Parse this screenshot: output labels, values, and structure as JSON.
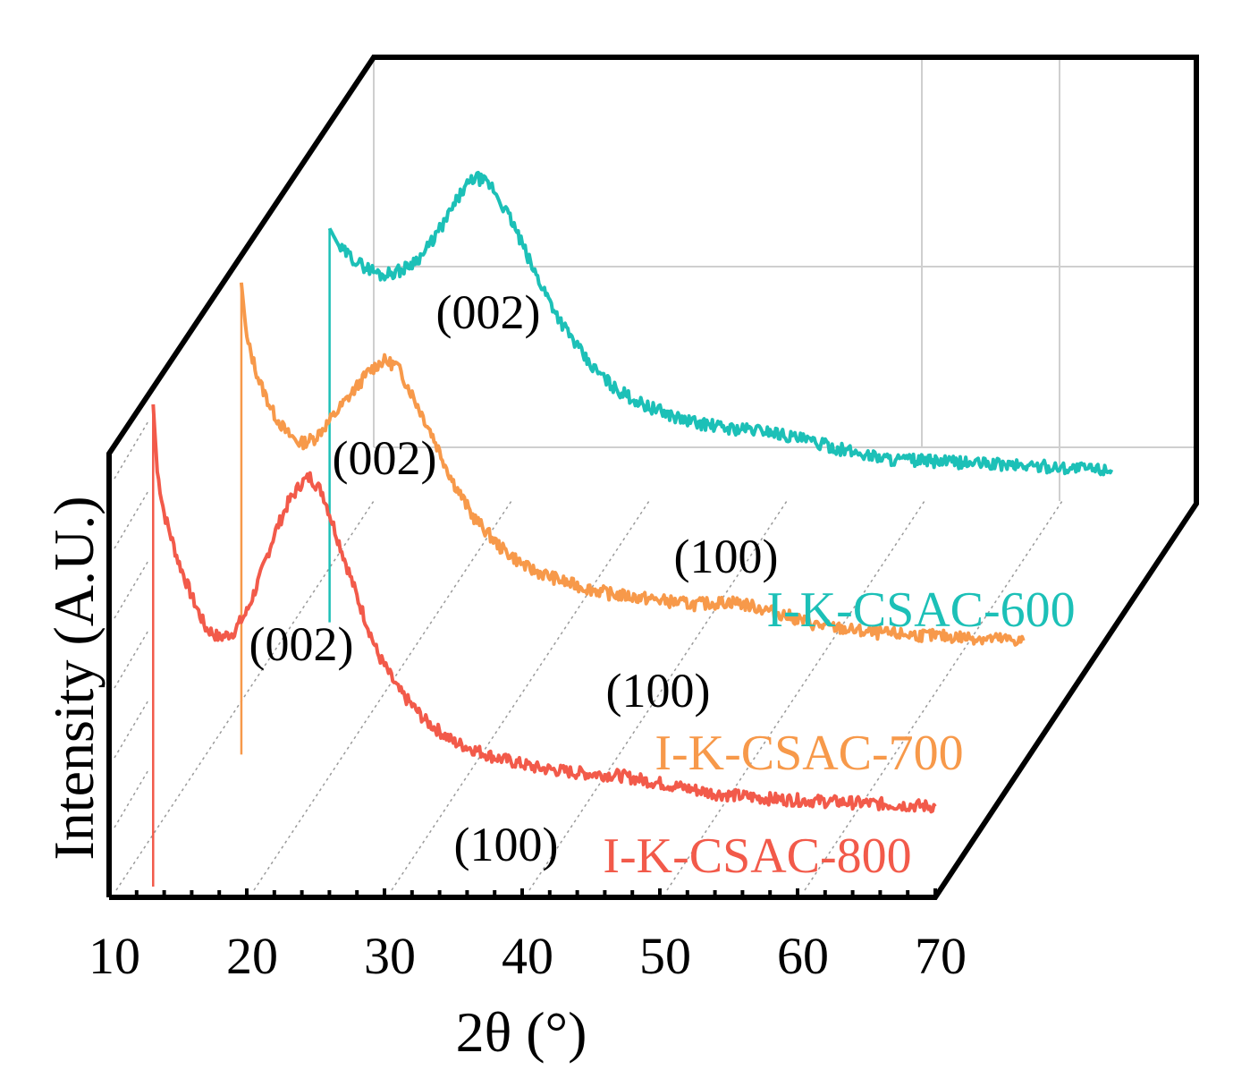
{
  "chart_data": {
    "type": "line",
    "style": "3d-waterfall",
    "title": "",
    "xlabel": "2θ (°)",
    "ylabel": "Intensity (A.U.)",
    "xlim": [
      10,
      70
    ],
    "x_ticks": [
      "10",
      "20",
      "30",
      "40",
      "50",
      "60",
      "70"
    ],
    "series": [
      {
        "name": "I-K-CSAC-800",
        "color": "#f25a4a",
        "label": "I-K-CSAC-800",
        "points": [
          [
            13.2,
            95
          ],
          [
            13.5,
            82
          ],
          [
            14,
            74
          ],
          [
            15,
            65
          ],
          [
            16,
            58
          ],
          [
            17,
            52
          ],
          [
            18,
            50
          ],
          [
            19,
            51
          ],
          [
            20,
            55
          ],
          [
            21,
            62
          ],
          [
            22,
            70
          ],
          [
            23,
            76
          ],
          [
            24,
            80
          ],
          [
            24.6,
            81
          ],
          [
            25.5,
            78
          ],
          [
            26.5,
            70
          ],
          [
            28,
            58
          ],
          [
            29.5,
            47
          ],
          [
            31,
            40
          ],
          [
            33,
            34
          ],
          [
            35,
            30
          ],
          [
            38,
            27
          ],
          [
            41,
            25
          ],
          [
            44,
            24
          ],
          [
            47,
            23.5
          ],
          [
            50,
            22
          ],
          [
            54,
            20
          ],
          [
            58,
            19
          ],
          [
            62,
            18.5
          ],
          [
            66,
            18
          ],
          [
            70,
            17.5
          ]
        ],
        "peaks": [
          {
            "label": "(002)",
            "x": 24.6
          },
          {
            "label": "(100)",
            "x": 45
          }
        ]
      },
      {
        "name": "I-K-CSAC-700",
        "color": "#f7994a",
        "label": "I-K-CSAC-700",
        "points": [
          [
            13.2,
            93
          ],
          [
            13.6,
            82
          ],
          [
            14.5,
            74
          ],
          [
            15.5,
            68
          ],
          [
            16.5,
            64
          ],
          [
            17.5,
            62
          ],
          [
            18.5,
            63
          ],
          [
            19.5,
            66
          ],
          [
            21,
            71
          ],
          [
            22.5,
            76
          ],
          [
            23.5,
            78
          ],
          [
            24.5,
            77
          ],
          [
            25.5,
            72
          ],
          [
            27,
            64
          ],
          [
            28.5,
            55
          ],
          [
            30,
            48
          ],
          [
            32,
            42
          ],
          [
            34,
            38
          ],
          [
            37,
            35
          ],
          [
            40,
            33
          ],
          [
            43,
            32
          ],
          [
            46,
            31
          ],
          [
            49,
            31.5
          ],
          [
            52,
            29.5
          ],
          [
            55,
            27
          ],
          [
            59,
            25.5
          ],
          [
            63,
            25
          ],
          [
            67,
            24.5
          ],
          [
            70,
            24
          ]
        ],
        "peaks": [
          {
            "label": "(002)",
            "x": 23.5
          },
          {
            "label": "(100)",
            "x": 48.5
          }
        ]
      },
      {
        "name": "I-K-CSAC-600",
        "color": "#1cc0b7",
        "label": "I-K-CSAC-600",
        "points": [
          [
            13.2,
            78
          ],
          [
            14,
            74
          ],
          [
            15.5,
            71
          ],
          [
            17,
            69
          ],
          [
            18.5,
            70
          ],
          [
            20,
            73
          ],
          [
            21.5,
            79
          ],
          [
            22.8,
            85
          ],
          [
            23.8,
            88
          ],
          [
            25,
            86
          ],
          [
            26.5,
            79
          ],
          [
            28,
            70
          ],
          [
            30,
            60
          ],
          [
            32,
            52
          ],
          [
            34,
            47
          ],
          [
            36,
            44
          ],
          [
            39,
            41
          ],
          [
            42,
            39.5
          ],
          [
            45,
            39
          ],
          [
            48,
            37
          ],
          [
            51,
            35
          ],
          [
            54,
            33.5
          ],
          [
            58,
            33
          ],
          [
            62,
            32.5
          ],
          [
            66,
            32
          ],
          [
            70,
            31.5
          ]
        ],
        "peaks": [
          {
            "label": "(002)",
            "x": 23.8
          },
          {
            "label": "(100)",
            "x": 45
          }
        ]
      }
    ]
  }
}
